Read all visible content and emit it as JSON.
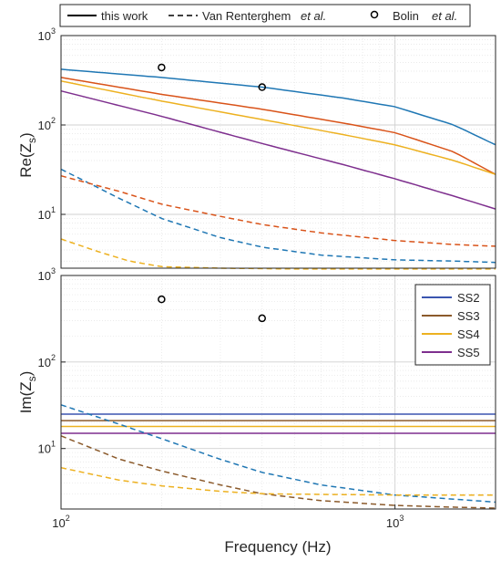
{
  "chart_data": [
    {
      "type": "line",
      "panel": "top",
      "ylabel": "Re(Z_s)",
      "ylabel_main": "Re(Z",
      "ylabel_sub": "s",
      "ylabel_close": ")",
      "xscale": "log",
      "yscale": "log",
      "xlim": [
        100,
        2000
      ],
      "ylim": [
        2.5,
        1000
      ],
      "y_ticks": [
        {
          "base": "10",
          "exp": "1",
          "value": 10
        },
        {
          "base": "10",
          "exp": "2",
          "value": 100
        },
        {
          "base": "10",
          "exp": "3",
          "value": 1000
        }
      ],
      "grid": true,
      "series": [
        {
          "group": "this work",
          "key": "SS2",
          "color": "#1f77b4",
          "style": "solid",
          "x": [
            100,
            200,
            400,
            700,
            1000,
            1500,
            2000
          ],
          "y": [
            420,
            340,
            265,
            200,
            160,
            100,
            60
          ]
        },
        {
          "group": "this work",
          "key": "SS3",
          "color": "#d95319",
          "style": "solid",
          "x": [
            100,
            200,
            400,
            700,
            1000,
            1500,
            2000
          ],
          "y": [
            340,
            220,
            150,
            105,
            82,
            50,
            28
          ]
        },
        {
          "group": "this work",
          "key": "SS4",
          "color": "#edb120",
          "style": "solid",
          "x": [
            100,
            200,
            400,
            700,
            1000,
            1500,
            2000
          ],
          "y": [
            310,
            185,
            115,
            78,
            60,
            40,
            28
          ]
        },
        {
          "group": "this work",
          "key": "SS5",
          "color": "#7e2f8e",
          "style": "solid",
          "x": [
            100,
            200,
            400,
            700,
            1000,
            1500,
            2000
          ],
          "y": [
            240,
            125,
            62,
            36,
            25,
            16,
            11.5
          ]
        },
        {
          "group": "Van Renterghem et al.",
          "key": "SS2",
          "color": "#1f77b4",
          "style": "dashed",
          "x": [
            100,
            150,
            200,
            300,
            400,
            600,
            1000,
            1500,
            2000
          ],
          "y": [
            32,
            15,
            9,
            5.5,
            4.3,
            3.5,
            3.1,
            3.0,
            2.9
          ]
        },
        {
          "group": "Van Renterghem et al.",
          "key": "SS3",
          "color": "#d95319",
          "style": "dashed",
          "x": [
            100,
            150,
            200,
            300,
            400,
            600,
            1000,
            1500,
            2000
          ],
          "y": [
            27,
            18,
            13,
            9.5,
            7.7,
            6.2,
            5.1,
            4.6,
            4.4
          ]
        },
        {
          "group": "Van Renterghem et al.",
          "key": "SS4",
          "color": "#edb120",
          "style": "dashed",
          "x": [
            100,
            130,
            160,
            200,
            300,
            500,
            1000,
            2000
          ],
          "y": [
            5.3,
            3.8,
            3.0,
            2.6,
            2.5,
            2.45,
            2.45,
            2.45
          ]
        }
      ],
      "points": {
        "group": "Bolin et al.",
        "x": [
          200,
          400
        ],
        "y": [
          440,
          265
        ]
      }
    },
    {
      "type": "line",
      "panel": "bottom",
      "xlabel": "Frequency (Hz)",
      "ylabel": "Im(Z_s)",
      "ylabel_main": "Im(Z",
      "ylabel_sub": "s",
      "ylabel_close": ")",
      "xscale": "log",
      "yscale": "log",
      "xlim": [
        100,
        2000
      ],
      "ylim": [
        2,
        1000
      ],
      "x_ticks": [
        {
          "base": "10",
          "exp": "2",
          "value": 100
        },
        {
          "base": "10",
          "exp": "3",
          "value": 1000
        }
      ],
      "y_ticks": [
        {
          "base": "10",
          "exp": "1",
          "value": 10
        },
        {
          "base": "10",
          "exp": "2",
          "value": 100
        },
        {
          "base": "10",
          "exp": "3",
          "value": 1000
        }
      ],
      "grid": true,
      "legend_position": "top-right",
      "legend": [
        {
          "label": "SS2",
          "color": "#3b55b0"
        },
        {
          "label": "SS3",
          "color": "#8b5a2b"
        },
        {
          "label": "SS4",
          "color": "#edb120"
        },
        {
          "label": "SS5",
          "color": "#7e2f8e"
        }
      ],
      "series": [
        {
          "group": "this work",
          "key": "SS2",
          "color": "#3b55b0",
          "style": "solid",
          "x": [
            100,
            2000
          ],
          "y": [
            25,
            25
          ]
        },
        {
          "group": "this work",
          "key": "SS3",
          "color": "#8b5a2b",
          "style": "solid",
          "x": [
            100,
            2000
          ],
          "y": [
            21,
            21
          ]
        },
        {
          "group": "this work",
          "key": "SS4",
          "color": "#edb120",
          "style": "solid",
          "x": [
            100,
            2000
          ],
          "y": [
            18,
            18
          ]
        },
        {
          "group": "this work",
          "key": "SS5",
          "color": "#7e2f8e",
          "style": "solid",
          "x": [
            100,
            2000
          ],
          "y": [
            15,
            15
          ]
        },
        {
          "group": "Van Renterghem et al.",
          "key": "SS2",
          "color": "#1f77b4",
          "style": "dashed",
          "x": [
            100,
            150,
            200,
            300,
            400,
            600,
            1000,
            1500,
            2000
          ],
          "y": [
            32,
            19,
            13,
            7.5,
            5.3,
            3.8,
            2.9,
            2.6,
            2.4
          ]
        },
        {
          "group": "Van Renterghem et al.",
          "key": "SS3",
          "color": "#8b5a2b",
          "style": "dashed",
          "x": [
            100,
            150,
            200,
            300,
            400,
            600,
            1000,
            1500,
            2000
          ],
          "y": [
            14,
            7.5,
            5.5,
            3.8,
            3.0,
            2.5,
            2.2,
            2.1,
            2.05
          ]
        },
        {
          "group": "Van Renterghem et al.",
          "key": "SS4",
          "color": "#edb120",
          "style": "dashed",
          "x": [
            100,
            150,
            200,
            300,
            400,
            600,
            1000,
            2000
          ],
          "y": [
            6,
            4.3,
            3.7,
            3.2,
            3.0,
            2.95,
            2.9,
            2.9
          ]
        }
      ],
      "points": {
        "group": "Bolin et al.",
        "x": [
          200,
          400
        ],
        "y": [
          530,
          320
        ]
      }
    }
  ],
  "top_legend": {
    "solid_label": "this work",
    "dashed_label": "Van Renterghem",
    "dashed_label_etal": "et al.",
    "marker_label": "Bolin",
    "marker_label_etal": "et al."
  }
}
